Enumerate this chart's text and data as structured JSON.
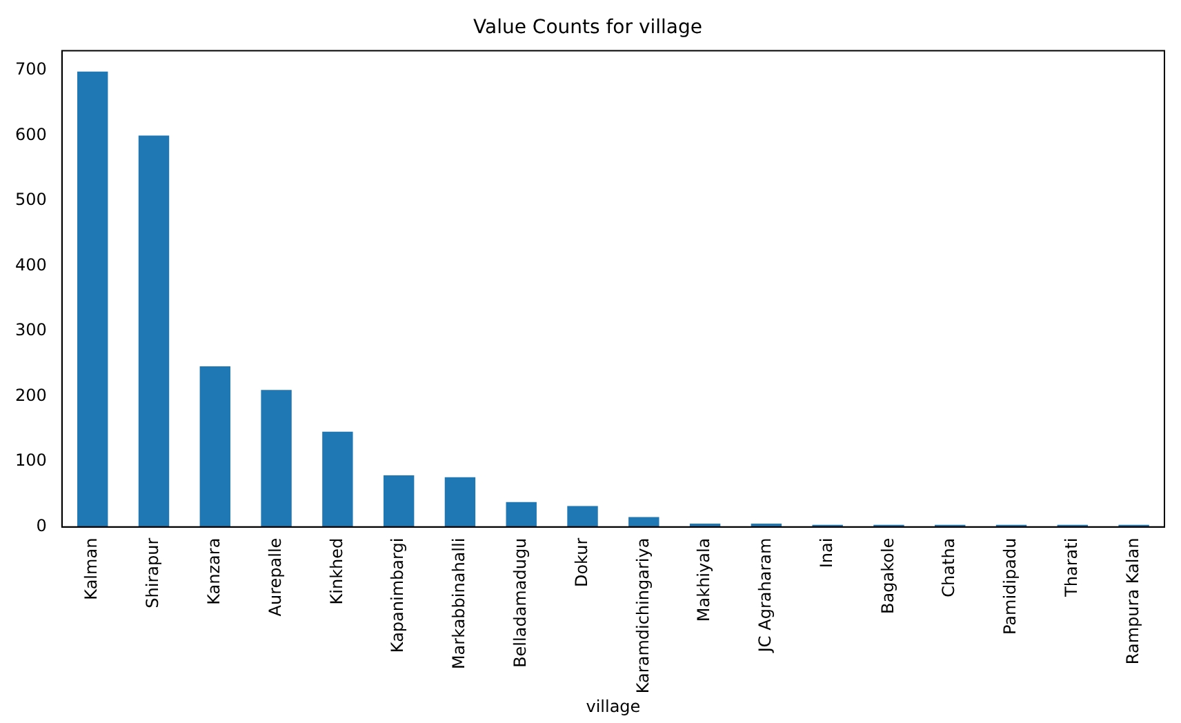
{
  "chart_data": {
    "type": "bar",
    "title": "Value Counts for village",
    "xlabel": "village",
    "categories": [
      "Kalman",
      "Shirapur",
      "Kanzara",
      "Aurepalle",
      "Kinkhed",
      "Kapanimbargi",
      "Markabbinahalli",
      "Belladamadugu",
      "Dokur",
      "Karamdichingariya",
      "Makhiyala",
      "JC Agraharam",
      "Inai",
      "Bagakole",
      "Chatha",
      "Pamidipadu",
      "Tharati",
      "Rampura Kalan"
    ],
    "values": [
      698,
      600,
      246,
      210,
      146,
      79,
      76,
      38,
      32,
      15,
      5,
      5,
      3,
      3,
      3,
      3,
      3,
      3
    ],
    "color": "#1f77b4",
    "ylim": [
      0,
      730
    ],
    "yticks": [
      0,
      100,
      200,
      300,
      400,
      500,
      600,
      700
    ],
    "grid": false,
    "legend": false
  }
}
